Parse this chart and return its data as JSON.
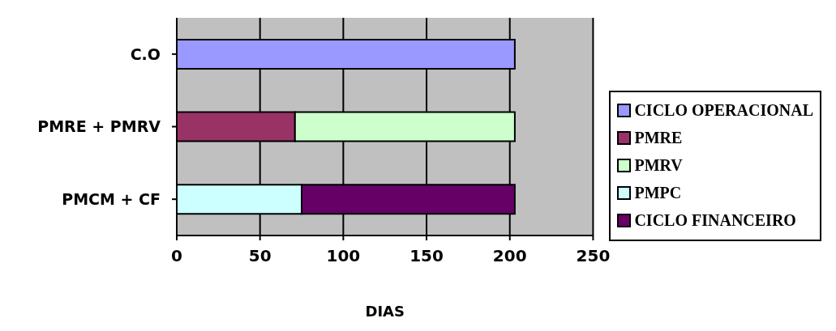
{
  "chart_data": {
    "type": "bar",
    "orientation": "horizontal",
    "stacked": true,
    "xlabel": "DIAS",
    "categories": [
      "C.O",
      "PMRE + PMRV",
      "PMCM + CF"
    ],
    "series": [
      {
        "name": "CICLO OPERACIONAL",
        "color": "#9999ff",
        "values": [
          203,
          null,
          null
        ]
      },
      {
        "name": "PMRE",
        "color": "#993366",
        "values": [
          null,
          71,
          null
        ]
      },
      {
        "name": "PMRV",
        "color": "#ccffcc",
        "values": [
          null,
          132,
          null
        ]
      },
      {
        "name": "PMPC",
        "color": "#ccffff",
        "values": [
          null,
          null,
          75
        ]
      },
      {
        "name": "CICLO FINANCEIRO",
        "color": "#660066",
        "values": [
          null,
          null,
          128
        ]
      }
    ],
    "xlim": [
      0,
      250
    ],
    "xticks": [
      0,
      50,
      100,
      150,
      200,
      250
    ],
    "grid": "x",
    "legend": "right"
  }
}
